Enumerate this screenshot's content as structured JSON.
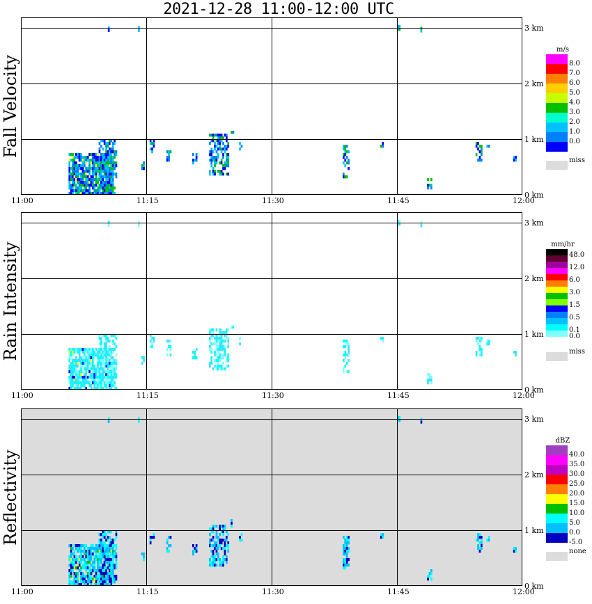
{
  "header": {
    "title": "2021-12-28   11:00-12:00 UTC"
  },
  "colors": {
    "panel_bg": "#ffffff",
    "refl_bg": "#dcdcdc",
    "grid": "#000000",
    "miss": "#dcdcdc"
  },
  "panels": [
    {
      "id": "fall",
      "ylabel": "Fall Velocity",
      "unit": "m/s",
      "miss_label": "miss",
      "bins": [
        {
          "color": "#ff00ff",
          "label": "8.0"
        },
        {
          "color": "#ff0000",
          "label": "7.0"
        },
        {
          "color": "#ff7f00",
          "label": "6.0"
        },
        {
          "color": "#ffcf00",
          "label": "5.0"
        },
        {
          "color": "#c8ff00",
          "label": "4.0"
        },
        {
          "color": "#00c000",
          "label": "3.0"
        },
        {
          "color": "#00ffcc",
          "label": "2.0"
        },
        {
          "color": "#00c0ff",
          "label": "1.0"
        },
        {
          "color": "#0080ff",
          "label": "0.0"
        },
        {
          "color": "#0000ff",
          "label": ""
        }
      ]
    },
    {
      "id": "rain",
      "ylabel": "Rain Intensity",
      "unit": "mm/hr",
      "miss_label": "miss",
      "bins": [
        {
          "color": "#000000",
          "label": "48.0"
        },
        {
          "color": "#600030",
          "label": ""
        },
        {
          "color": "#a000a0",
          "label": "12.0"
        },
        {
          "color": "#ff00ff",
          "label": ""
        },
        {
          "color": "#ff0000",
          "label": "6.0"
        },
        {
          "color": "#ff8000",
          "label": ""
        },
        {
          "color": "#ffff00",
          "label": "3.0"
        },
        {
          "color": "#00c000",
          "label": ""
        },
        {
          "color": "#80ff00",
          "label": "1.5"
        },
        {
          "color": "#0000ff",
          "label": ""
        },
        {
          "color": "#0080ff",
          "label": "0.5"
        },
        {
          "color": "#00c0ff",
          "label": ""
        },
        {
          "color": "#00ffff",
          "label": "0.1"
        },
        {
          "color": "#80ffff",
          "label": "0.0"
        },
        {
          "color": "#ffffff",
          "label": ""
        }
      ]
    },
    {
      "id": "refl",
      "ylabel": "Reflectivity",
      "unit": "dBZ",
      "miss_label": "none",
      "bins": [
        {
          "color": "#a040c0",
          "label": "40.0"
        },
        {
          "color": "#ff00ff",
          "label": "35.0"
        },
        {
          "color": "#c000c0",
          "label": "30.0"
        },
        {
          "color": "#ff0000",
          "label": "25.0"
        },
        {
          "color": "#ff8000",
          "label": "20.0"
        },
        {
          "color": "#ffff00",
          "label": "15.0"
        },
        {
          "color": "#00c000",
          "label": "10.0"
        },
        {
          "color": "#00ffff",
          "label": "5.0"
        },
        {
          "color": "#00c0ff",
          "label": "0.0"
        },
        {
          "color": "#0000c0",
          "label": "-5.0"
        }
      ]
    }
  ],
  "chart_data": {
    "type": "heatmap",
    "title": "2021-12-28   11:00-12:00 UTC",
    "x_ticks": [
      "11:00",
      "11:15",
      "11:30",
      "11:45",
      "12:00"
    ],
    "x_range_minutes": [
      0,
      60
    ],
    "y_ticks": [
      "0 km",
      "1 km",
      "2 km",
      "3 km"
    ],
    "y_range_km": [
      0,
      3.2
    ],
    "grid": true,
    "series": [
      {
        "name": "Fall Velocity",
        "unit": "m/s"
      },
      {
        "name": "Rain Intensity",
        "unit": "mm/hr"
      },
      {
        "name": "Reflectivity",
        "unit": "dBZ"
      }
    ],
    "echoes": [
      {
        "t0": 5.7,
        "t1": 11.1,
        "z0": 0.0,
        "z1": 0.75,
        "intensity": 0.9,
        "density": 0.8
      },
      {
        "t0": 9.3,
        "t1": 11.5,
        "z0": 0.0,
        "z1": 1.0,
        "intensity": 0.8,
        "density": 0.55
      },
      {
        "t0": 14.4,
        "t1": 14.7,
        "z0": 0.45,
        "z1": 0.6,
        "intensity": 0.3,
        "density": 0.7
      },
      {
        "t0": 15.4,
        "t1": 15.8,
        "z0": 0.75,
        "z1": 1.0,
        "intensity": 0.3,
        "density": 0.6
      },
      {
        "t0": 17.4,
        "t1": 17.8,
        "z0": 0.6,
        "z1": 0.9,
        "intensity": 0.3,
        "density": 0.6
      },
      {
        "t0": 20.5,
        "t1": 21.0,
        "z0": 0.55,
        "z1": 0.75,
        "intensity": 0.2,
        "density": 0.6
      },
      {
        "t0": 22.5,
        "t1": 24.7,
        "z0": 0.35,
        "z1": 1.1,
        "intensity": 0.6,
        "density": 0.6
      },
      {
        "t0": 25.1,
        "t1": 25.4,
        "z0": 1.05,
        "z1": 1.2,
        "intensity": 0.3,
        "density": 0.6
      },
      {
        "t0": 26.1,
        "t1": 26.3,
        "z0": 0.8,
        "z1": 0.95,
        "intensity": 0.2,
        "density": 0.6
      },
      {
        "t0": 38.5,
        "t1": 39.3,
        "z0": 0.3,
        "z1": 0.9,
        "intensity": 0.4,
        "density": 0.55
      },
      {
        "t0": 43.0,
        "t1": 43.3,
        "z0": 0.85,
        "z1": 0.95,
        "intensity": 0.2,
        "density": 0.8
      },
      {
        "t0": 48.6,
        "t1": 49.1,
        "z0": 0.1,
        "z1": 0.3,
        "intensity": 0.3,
        "density": 0.7
      },
      {
        "t0": 54.4,
        "t1": 55.0,
        "z0": 0.6,
        "z1": 0.95,
        "intensity": 0.3,
        "density": 0.6
      },
      {
        "t0": 55.7,
        "t1": 56.0,
        "z0": 0.8,
        "z1": 0.9,
        "intensity": 0.2,
        "density": 0.7
      },
      {
        "t0": 58.9,
        "t1": 59.2,
        "z0": 0.6,
        "z1": 0.7,
        "intensity": 0.2,
        "density": 0.8
      },
      {
        "t0": 10.4,
        "t1": 10.6,
        "z0": 2.97,
        "z1": 3.03,
        "intensity": 0.3,
        "density": 1.0
      },
      {
        "t0": 14.0,
        "t1": 14.2,
        "z0": 2.97,
        "z1": 3.03,
        "intensity": 0.3,
        "density": 1.0
      },
      {
        "t0": 45.0,
        "t1": 45.2,
        "z0": 2.97,
        "z1": 3.05,
        "intensity": 0.3,
        "density": 1.0
      },
      {
        "t0": 47.8,
        "t1": 48.0,
        "z0": 2.96,
        "z1": 3.02,
        "intensity": 0.3,
        "density": 1.0
      }
    ]
  }
}
